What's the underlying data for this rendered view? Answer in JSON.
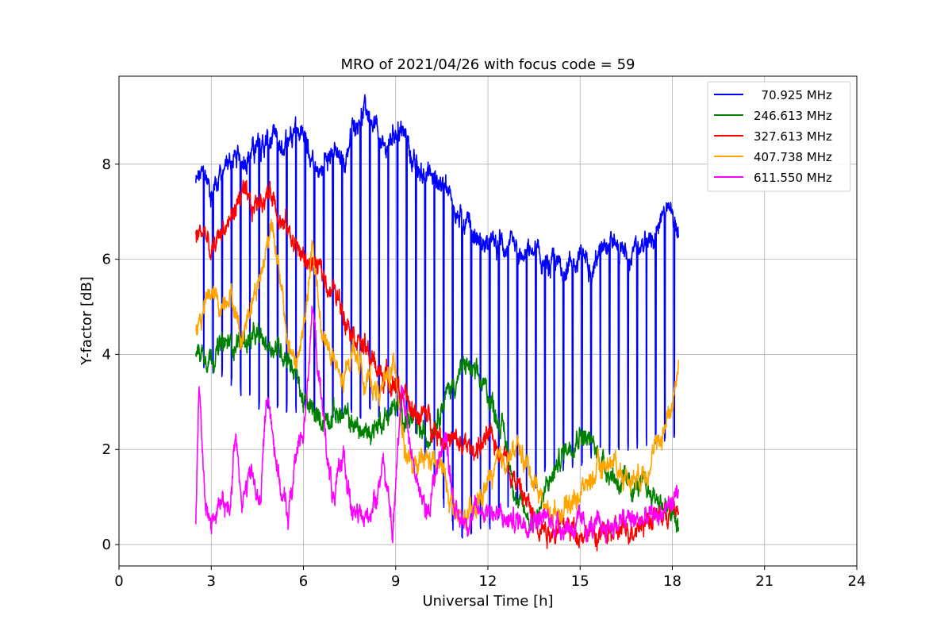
{
  "chart_data": {
    "type": "line",
    "title": "MRO of 2021/04/26 with focus code = 59",
    "xlabel": "Universal Time [h]",
    "ylabel": "Y-factor [dB]",
    "xlim": [
      0,
      24
    ],
    "ylim": [
      -0.45,
      9.85
    ],
    "xticks": [
      0,
      3,
      6,
      9,
      12,
      15,
      18,
      21,
      24
    ],
    "yticks": [
      0,
      2,
      4,
      6,
      8
    ],
    "grid": true,
    "legend_position": "top-right",
    "series": [
      {
        "name": "  70.925 MHz",
        "color": "#0000ff",
        "dip_period_h": 0.3,
        "dip_floor_db": [
          [
            2.5,
            4.0
          ],
          [
            4.5,
            3.0
          ],
          [
            7.0,
            2.8
          ],
          [
            9.5,
            2.7
          ],
          [
            11.0,
            0.2
          ],
          [
            12.0,
            0.4
          ],
          [
            14.0,
            1.6
          ],
          [
            16.0,
            2.0
          ],
          [
            18.2,
            2.4
          ]
        ],
        "x": [
          2.5,
          2.8,
          3.0,
          3.5,
          4.0,
          4.5,
          5.0,
          5.3,
          5.7,
          6.0,
          6.3,
          6.5,
          7.0,
          7.3,
          7.6,
          8.0,
          8.3,
          8.6,
          9.0,
          9.3,
          9.7,
          10.0,
          10.5,
          11.0,
          11.5,
          12.0,
          12.5,
          13.0,
          13.5,
          14.0,
          14.5,
          15.0,
          15.5,
          16.0,
          16.5,
          17.0,
          17.5,
          18.0,
          18.2
        ],
        "y": [
          7.6,
          7.8,
          7.4,
          8.0,
          8.2,
          8.3,
          8.5,
          8.3,
          8.9,
          8.7,
          8.0,
          7.9,
          8.2,
          7.9,
          8.8,
          9.1,
          9.0,
          8.2,
          8.8,
          8.6,
          7.8,
          7.8,
          7.6,
          6.9,
          6.5,
          6.3,
          6.3,
          6.0,
          6.1,
          5.8,
          5.9,
          6.1,
          6.0,
          6.4,
          6.1,
          6.2,
          6.6,
          7.0,
          6.4
        ]
      },
      {
        "name": "246.613 MHz",
        "color": "#008000",
        "x": [
          2.5,
          3.0,
          3.5,
          4.0,
          4.5,
          5.0,
          5.5,
          5.8,
          6.0,
          6.5,
          7.0,
          7.5,
          8.0,
          8.5,
          9.0,
          9.5,
          10.0,
          10.5,
          11.0,
          11.3,
          11.6,
          12.0,
          12.5,
          13.0,
          13.5,
          14.0,
          14.5,
          15.0,
          15.5,
          16.0,
          16.5,
          17.0,
          17.5,
          18.0,
          18.2
        ],
        "y": [
          4.1,
          4.0,
          4.2,
          4.3,
          4.3,
          4.2,
          4.0,
          3.5,
          3.0,
          2.6,
          2.8,
          2.6,
          2.3,
          2.6,
          2.9,
          2.6,
          2.2,
          3.0,
          3.5,
          3.8,
          3.5,
          3.2,
          2.4,
          0.8,
          0.5,
          1.3,
          2.0,
          2.4,
          2.0,
          1.5,
          1.2,
          1.2,
          1.0,
          0.6,
          0.3
        ]
      },
      {
        "name": "327.613 MHz",
        "color": "#ff0000",
        "x": [
          2.5,
          2.8,
          3.0,
          3.3,
          3.6,
          4.0,
          4.3,
          4.6,
          5.0,
          5.3,
          5.6,
          6.0,
          6.3,
          6.6,
          7.0,
          7.5,
          8.0,
          8.5,
          9.0,
          9.5,
          10.0,
          10.5,
          11.0,
          11.5,
          12.0,
          12.5,
          13.0,
          13.5,
          14.0,
          14.5,
          15.0,
          15.5,
          16.0,
          16.5,
          17.0,
          17.5,
          18.0,
          18.2
        ],
        "y": [
          6.5,
          6.6,
          6.0,
          6.6,
          6.8,
          7.4,
          7.0,
          7.3,
          7.4,
          6.8,
          6.5,
          6.0,
          5.9,
          5.7,
          5.3,
          4.7,
          4.1,
          3.6,
          3.4,
          2.8,
          2.7,
          2.3,
          2.1,
          2.0,
          2.2,
          2.0,
          1.2,
          0.6,
          0.3,
          0.4,
          0.3,
          0.2,
          0.2,
          0.3,
          0.5,
          0.6,
          0.7,
          0.7
        ]
      },
      {
        "name": "407.738 MHz",
        "color": "#ffa500",
        "x": [
          2.5,
          2.8,
          3.0,
          3.3,
          3.6,
          4.0,
          4.3,
          4.6,
          5.0,
          5.2,
          5.5,
          5.8,
          6.0,
          6.3,
          6.6,
          7.0,
          7.3,
          7.6,
          8.0,
          8.5,
          9.0,
          9.3,
          9.6,
          10.0,
          10.5,
          11.0,
          11.5,
          12.0,
          12.5,
          13.0,
          13.5,
          14.0,
          14.5,
          15.0,
          15.5,
          16.0,
          16.5,
          17.0,
          17.5,
          18.0,
          18.2
        ],
        "y": [
          4.5,
          5.0,
          5.3,
          5.0,
          5.4,
          4.3,
          5.2,
          5.6,
          6.9,
          5.7,
          4.2,
          3.8,
          4.5,
          6.2,
          4.5,
          3.8,
          3.3,
          4.2,
          3.5,
          3.2,
          3.8,
          2.0,
          1.5,
          1.8,
          1.6,
          0.5,
          0.6,
          1.3,
          1.8,
          2.0,
          1.4,
          0.6,
          0.8,
          1.1,
          1.5,
          1.8,
          1.4,
          1.5,
          2.0,
          3.0,
          3.8
        ]
      },
      {
        "name": "611.550 MHz",
        "color": "#ff00ff",
        "x": [
          2.5,
          2.6,
          2.8,
          3.0,
          3.3,
          3.6,
          3.8,
          4.0,
          4.3,
          4.6,
          4.8,
          5.0,
          5.3,
          5.5,
          5.8,
          6.0,
          6.3,
          6.5,
          6.8,
          7.0,
          7.3,
          7.6,
          8.0,
          8.3,
          8.6,
          8.9,
          9.2,
          9.5,
          9.8,
          10.0,
          10.3,
          10.6,
          11.0,
          11.5,
          12.0,
          12.5,
          13.0,
          13.5,
          14.0,
          14.5,
          15.0,
          15.5,
          16.0,
          16.5,
          17.0,
          17.5,
          18.0,
          18.2
        ],
        "y": [
          0.5,
          3.5,
          0.8,
          0.5,
          0.8,
          0.7,
          2.5,
          0.9,
          1.5,
          0.8,
          3.2,
          2.4,
          1.0,
          0.6,
          2.0,
          2.4,
          5.0,
          3.5,
          1.8,
          0.8,
          2.0,
          0.6,
          0.5,
          0.9,
          1.8,
          0.1,
          3.5,
          2.0,
          1.0,
          0.6,
          1.5,
          2.4,
          0.5,
          0.6,
          0.8,
          0.5,
          0.5,
          0.6,
          0.5,
          0.4,
          0.4,
          0.3,
          0.4,
          0.5,
          0.5,
          0.6,
          0.9,
          1.2
        ]
      }
    ]
  }
}
